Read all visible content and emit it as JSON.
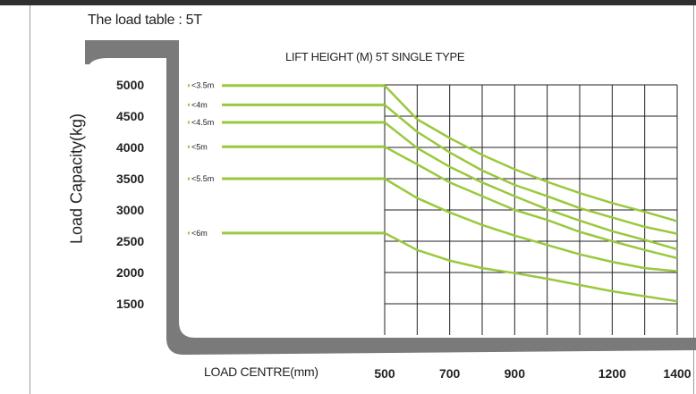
{
  "page": {
    "title": "The load table : 5T"
  },
  "colors": {
    "line": "#9ac83e",
    "grid": "#222222",
    "fork": "#7a7a7a",
    "topbar": "#2f2f2f"
  },
  "chart_data": {
    "type": "line",
    "title": "LIFT HEIGHT (M)    5T SINGLE TYPE",
    "xlabel": "LOAD CENTRE(mm)",
    "ylabel": "Load Capacity(kg)",
    "x_ticks": [
      "500",
      "700",
      "900",
      "1200",
      "1400"
    ],
    "y_ticks": [
      "5000",
      "4500",
      "4000",
      "3500",
      "3000",
      "2500",
      "2000",
      "1500"
    ],
    "xlim": [
      500,
      1400
    ],
    "ylim": [
      1000,
      5000
    ],
    "grid": true,
    "series": [
      {
        "name": "<3.5m",
        "x": [
          500,
          600,
          700,
          800,
          900,
          1000,
          1100,
          1200,
          1300,
          1400
        ],
        "values": [
          4990,
          4450,
          4150,
          3880,
          3650,
          3450,
          3270,
          3110,
          2970,
          2820
        ]
      },
      {
        "name": "<4m",
        "x": [
          500,
          600,
          700,
          800,
          900,
          1000,
          1100,
          1200,
          1300,
          1400
        ],
        "values": [
          4680,
          4250,
          3920,
          3630,
          3400,
          3220,
          3030,
          2880,
          2730,
          2620
        ]
      },
      {
        "name": "<4.5m",
        "x": [
          500,
          600,
          700,
          800,
          900,
          1000,
          1100,
          1200,
          1300,
          1400
        ],
        "values": [
          4400,
          3990,
          3690,
          3440,
          3220,
          3010,
          2830,
          2660,
          2520,
          2370
        ]
      },
      {
        "name": "<5m",
        "x": [
          500,
          600,
          700,
          800,
          900,
          1000,
          1100,
          1200,
          1300,
          1400
        ],
        "values": [
          4010,
          3730,
          3440,
          3220,
          3000,
          2840,
          2650,
          2500,
          2360,
          2230
        ]
      },
      {
        "name": "<5.5m",
        "x": [
          500,
          600,
          700,
          800,
          900,
          1000,
          1100,
          1200,
          1300,
          1400
        ],
        "values": [
          3500,
          3190,
          2960,
          2760,
          2590,
          2440,
          2290,
          2170,
          2070,
          2020
        ]
      },
      {
        "name": "<6m",
        "x": [
          500,
          600,
          700,
          800,
          900,
          1000,
          1100,
          1200,
          1300,
          1400
        ],
        "values": [
          2630,
          2360,
          2190,
          2070,
          1990,
          1900,
          1800,
          1700,
          1620,
          1540
        ]
      }
    ]
  }
}
